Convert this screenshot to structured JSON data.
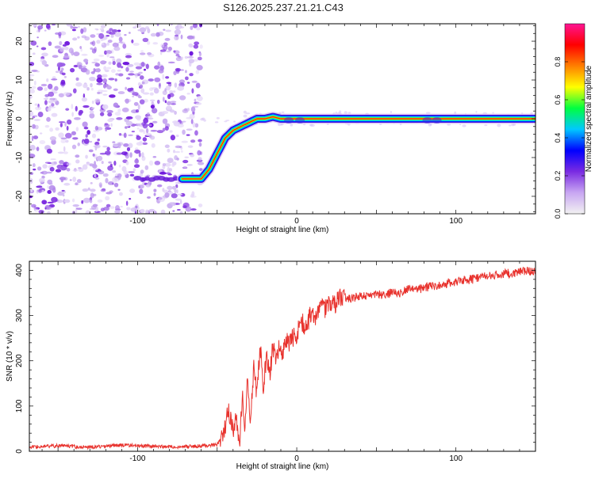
{
  "title": "S126.2025.237.21.21.C43",
  "chart_data": [
    {
      "type": "heatmap",
      "title": "S126.2025.237.21.21.C43",
      "xlabel": "Height of straight line (km)",
      "ylabel": "Frequency (Hz)",
      "xlim": [
        -168,
        150
      ],
      "ylim": [
        -24.5,
        24.5
      ],
      "xticks": [
        -100,
        0,
        100
      ],
      "yticks": [
        -20,
        -10,
        0,
        10,
        20
      ],
      "ridge": {
        "x": [
          -100,
          -80,
          -70,
          -60,
          -55,
          -50,
          -45,
          -40,
          -35,
          -30,
          -25,
          -20,
          -15,
          -10,
          -5,
          0,
          10,
          20,
          40,
          60,
          80,
          90,
          100,
          150
        ],
        "freq": [
          -15.5,
          -15.5,
          -15.5,
          -15.5,
          -13,
          -9,
          -5,
          -3,
          -2,
          -1,
          0,
          0,
          0.5,
          0,
          0,
          0,
          0,
          0,
          0,
          0,
          0,
          0,
          0,
          0
        ]
      },
      "colorbar": {
        "label": "Normalized spectral amplitude",
        "ticks": [
          0.0,
          0.2,
          0.4,
          0.6,
          0.8
        ],
        "range": [
          0,
          1
        ],
        "colors": [
          "#f2f2f2",
          "#c8a6f2",
          "#7a2be2",
          "#0000ff",
          "#00c8ff",
          "#00ff40",
          "#ffff00",
          "#ff7f00",
          "#ff0000",
          "#ff1493"
        ]
      }
    },
    {
      "type": "line",
      "xlabel": "Height of straight line (km)",
      "ylabel": "SNR (10 * v/v)",
      "xlim": [
        -168,
        150
      ],
      "ylim": [
        0,
        420
      ],
      "xticks": [
        -100,
        0,
        100
      ],
      "yticks": [
        0,
        100,
        200,
        300,
        400
      ],
      "series_color": "#e8322d",
      "series": [
        {
          "name": "SNR",
          "x": [
            -168,
            -150,
            -130,
            -110,
            -90,
            -70,
            -60,
            -50,
            -48,
            -45,
            -43,
            -41,
            -40,
            -38,
            -36,
            -34,
            -33,
            -31,
            -29,
            -27,
            -25,
            -23,
            -21,
            -19,
            -17,
            -15,
            -13,
            -11,
            -9,
            -7,
            -5,
            -3,
            0,
            3,
            6,
            9,
            12,
            15,
            18,
            21,
            24,
            27,
            30,
            35,
            40,
            45,
            50,
            55,
            60,
            65,
            70,
            75,
            80,
            85,
            90,
            95,
            100,
            105,
            110,
            115,
            120,
            125,
            130,
            135,
            140,
            145,
            150
          ],
          "values": [
            10,
            12,
            9,
            14,
            11,
            10,
            12,
            15,
            25,
            55,
            95,
            60,
            40,
            80,
            20,
            120,
            40,
            160,
            60,
            190,
            120,
            240,
            140,
            210,
            170,
            230,
            200,
            240,
            215,
            250,
            230,
            250,
            260,
            285,
            275,
            305,
            300,
            320,
            315,
            330,
            325,
            338,
            340,
            338,
            345,
            340,
            348,
            345,
            352,
            350,
            358,
            355,
            362,
            365,
            368,
            372,
            375,
            378,
            380,
            384,
            388,
            390,
            392,
            394,
            396,
            398,
            400
          ]
        }
      ]
    }
  ]
}
